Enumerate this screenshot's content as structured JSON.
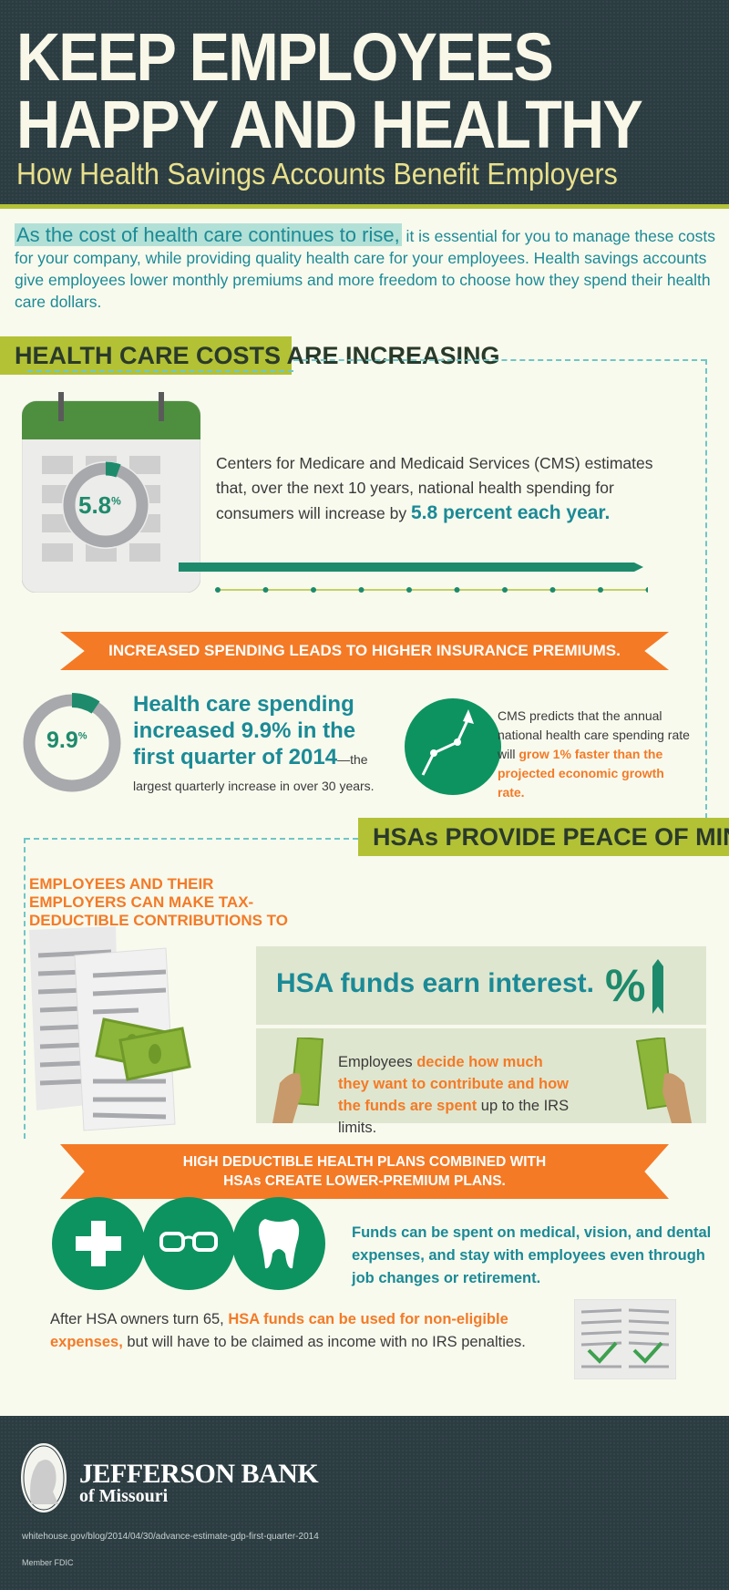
{
  "header": {
    "title_line1": "KEEP EMPLOYEES",
    "title_line2": "HAPPY AND HEALTHY",
    "subtitle": "How Health Savings Accounts Benefit Employers"
  },
  "intro": {
    "highlight": "As the cost of health care continues to rise,",
    "text": " it is essential for you to manage these costs for your company, while providing quality health care for your employees. Health savings accounts give employees lower monthly premiums and more freedom to choose how they spend their health care dollars."
  },
  "section1": {
    "banner": "HEALTH CARE COSTS ARE INCREASING",
    "calendar_value": "5.8",
    "calendar_unit": "%",
    "cms_text": "Centers for Medicare and Medicaid Services (CMS) estimates that, over the next 10 years, national health spending for consumers will increase by ",
    "cms_highlight": "5.8 percent each year.",
    "ribbon": "INCREASED SPENDING LEADS TO HIGHER INSURANCE PREMIUMS.",
    "donut_value": "9.9",
    "donut_unit": "%",
    "spending_headline": "Health care spending increased 9.9% in the first quarter of 2014",
    "spending_rest": "—the largest quarterly increase in over 30 years.",
    "predict_text": "CMS predicts that the annual national health care spending rate will ",
    "predict_highlight": "grow 1% faster than the projected economic growth rate."
  },
  "section2": {
    "banner": "HSAs PROVIDE PEACE OF MIND",
    "tax_heading": "EMPLOYEES AND THEIR EMPLOYERS CAN MAKE TAX-DEDUCTIBLE CONTRIBUTIONS TO HSAs.",
    "interest": "HSA funds earn interest.",
    "interest_icon": "%",
    "decide_a": "Employees ",
    "decide_b": "decide how much they want to contribute and how the funds are spent",
    "decide_c": " up to the IRS limits.",
    "ribbon_line1": "HIGH DEDUCTIBLE HEALTH PLANS COMBINED WITH",
    "ribbon_line2": "HSAs CREATE LOWER-PREMIUM PLANS.",
    "funds_text": "Funds can be spent on medical, vision, and dental expenses, and stay with employees even through job changes or retirement.",
    "after_a": "After HSA owners turn 65, ",
    "after_b": "HSA funds can be used for non-eligible expenses,",
    "after_c": " but will have to be claimed as income with no IRS penalties."
  },
  "footer": {
    "bank_name": "JEFFERSON BANK",
    "bank_sub": "of Missouri",
    "source": "whitehouse.gov/blog/2014/04/30/advance-estimate-gdp-first-quarter-2014",
    "fdic": "Member FDIC"
  },
  "colors": {
    "dark": "#2c3d42",
    "teal": "#1b8a96",
    "olive": "#b3c235",
    "orange": "#f47a26",
    "green": "#0d9360",
    "gray": "#a8a9ad"
  }
}
